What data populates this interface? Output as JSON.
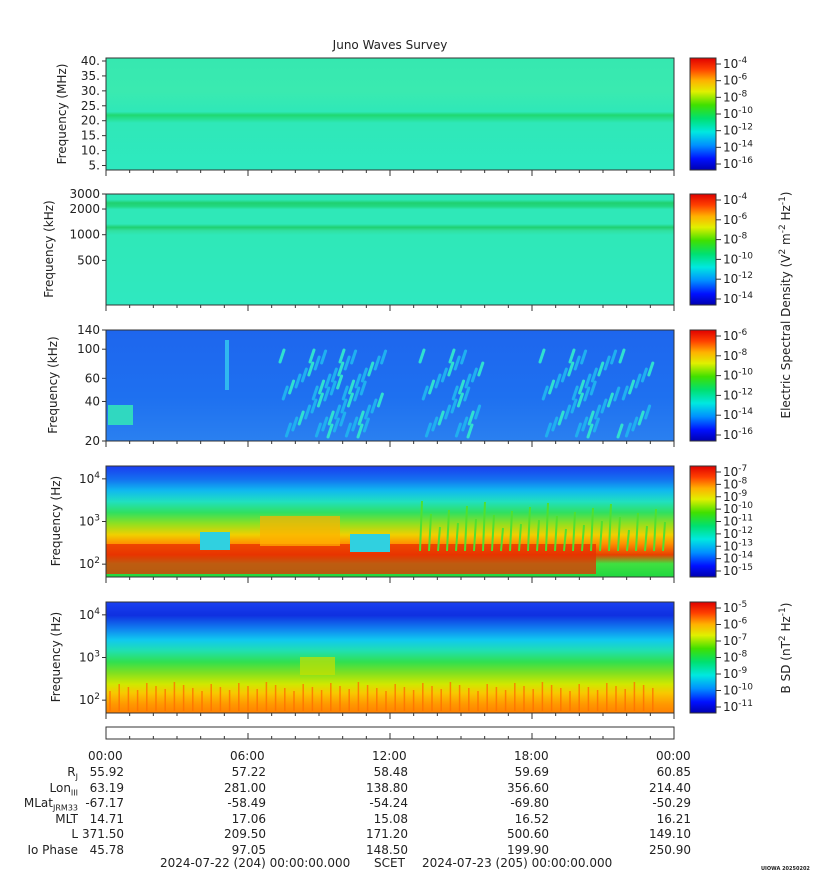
{
  "title": "Juno Waves Survey",
  "credit": "UIOWA 20250202",
  "colors": {
    "background_panels": [
      "#2fe8b8",
      "#2fe8b8",
      "#1f6ef0",
      "#1a4cf0",
      "#1e3df0"
    ]
  },
  "chart_data": [
    {
      "type": "heatmap",
      "name": "high-frequency",
      "ylabel": "Frequency (MHz)",
      "yticks": [
        "40.",
        "35.",
        "30.",
        "25.",
        "20.",
        "15.",
        "10.",
        "5."
      ],
      "ylim": [
        3.5,
        41
      ],
      "colorbar_ticks": [
        "10-4",
        "10-6",
        "10-8",
        "10-10",
        "10-12",
        "10-14",
        "10-16"
      ],
      "colorbar_unit": ""
    },
    {
      "type": "heatmap",
      "name": "mid-frequency",
      "ylabel": "Frequency (kHz)",
      "yticks": [
        "3000",
        "2000",
        "1000",
        "500"
      ],
      "ylim": [
        150,
        3000
      ],
      "colorbar_ticks": [
        "10-4",
        "10-6",
        "10-8",
        "10-10",
        "10-12",
        "10-14"
      ],
      "colorbar_unit": "Electric Spectral Density (V2 m-2 Hz-1)"
    },
    {
      "type": "heatmap",
      "name": "low-frequency",
      "ylabel": "Frequency (kHz)",
      "yticks": [
        "140",
        "100",
        "60",
        "40",
        "20"
      ],
      "ylim": [
        20,
        140
      ],
      "colorbar_ticks": [
        "10-6",
        "10-8",
        "10-10",
        "10-12",
        "10-14",
        "10-16"
      ],
      "colorbar_unit": ""
    },
    {
      "type": "heatmap",
      "name": "electric-low-Hz",
      "ylabel": "Frequency (Hz)",
      "yticks": [
        "104",
        "103",
        "102"
      ],
      "ylim": [
        50,
        20000
      ],
      "colorbar_ticks": [
        "10-7",
        "10-8",
        "10-9",
        "10-10",
        "10-11",
        "10-12",
        "10-13",
        "10-14",
        "10-15"
      ],
      "colorbar_unit": ""
    },
    {
      "type": "heatmap",
      "name": "magnetic-low-Hz",
      "ylabel": "Frequency (Hz)",
      "yticks": [
        "104",
        "103",
        "102"
      ],
      "ylim": [
        50,
        20000
      ],
      "colorbar_ticks": [
        "10-5",
        "10-6",
        "10-7",
        "10-8",
        "10-9",
        "10-10",
        "10-11"
      ],
      "colorbar_unit": "B SD (nT2 Hz-1)"
    }
  ],
  "time_axis": {
    "ticks": [
      "00:00",
      "06:00",
      "12:00",
      "18:00",
      "00:00"
    ]
  },
  "ephemeris": {
    "rows": [
      {
        "label": "RJ",
        "values": [
          "55.92",
          "57.22",
          "58.48",
          "59.69",
          "60.85"
        ]
      },
      {
        "label": "LonIII",
        "values": [
          "63.19",
          "281.00",
          "138.80",
          "356.60",
          "214.40"
        ]
      },
      {
        "label": "MLatJRM33",
        "values": [
          "-67.17",
          "-58.49",
          "-54.24",
          "-69.80",
          "-50.29"
        ]
      },
      {
        "label": "MLT",
        "values": [
          "14.71",
          "17.06",
          "15.08",
          "16.52",
          "16.21"
        ]
      },
      {
        "label": "L",
        "values": [
          "371.50",
          "209.50",
          "171.20",
          "500.60",
          "149.10"
        ]
      },
      {
        "label": "Io Phase",
        "values": [
          "45.78",
          "97.05",
          "148.50",
          "199.90",
          "250.90"
        ]
      }
    ]
  },
  "footer": {
    "start": "2024-07-22 (204) 00:00:00.000",
    "mid": "SCET",
    "end": "2024-07-23 (205) 00:00:00.000"
  }
}
